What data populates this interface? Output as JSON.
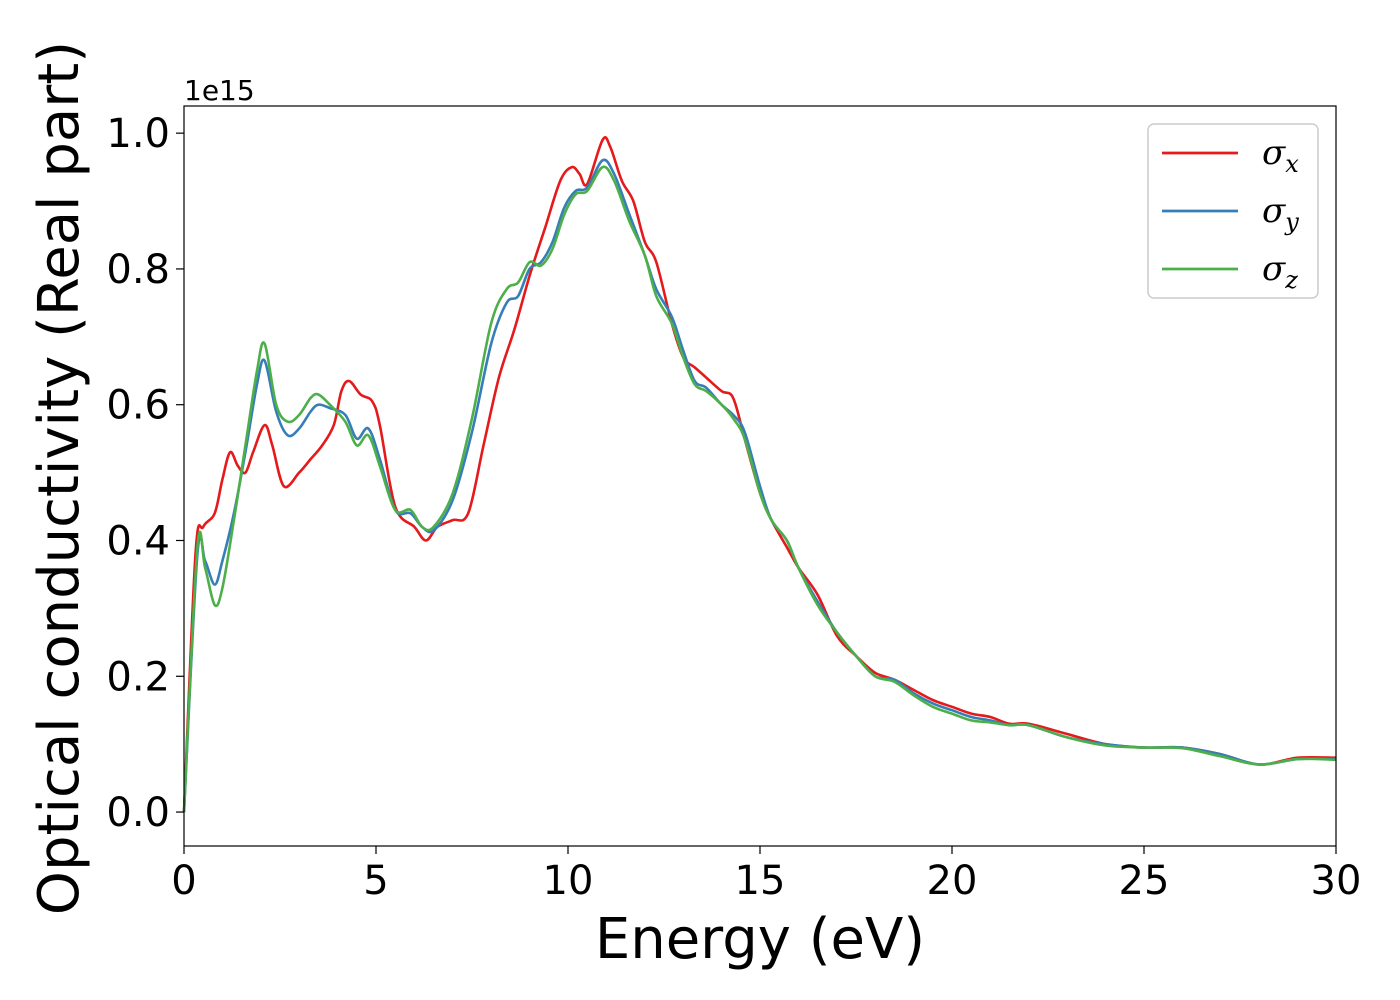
{
  "chart_data": {
    "type": "line",
    "xlabel": "Energy (eV)",
    "ylabel": "Optical conductivity (Real part)",
    "y_offset_label": "1e15",
    "xlim": [
      0,
      30
    ],
    "ylim": [
      -0.05,
      1.04
    ],
    "x_ticks": [
      0,
      5,
      10,
      15,
      20,
      25,
      30
    ],
    "x_tick_labels": [
      "0",
      "5",
      "10",
      "15",
      "20",
      "25",
      "30"
    ],
    "y_ticks": [
      0.0,
      0.2,
      0.4,
      0.6,
      0.8,
      1.0
    ],
    "y_tick_labels": [
      "0.0",
      "0.2",
      "0.4",
      "0.6",
      "0.8",
      "1.0"
    ],
    "grid": false,
    "legend_position": "top-right",
    "series": [
      {
        "name": "σx",
        "symbol": "σ",
        "subscript": "x",
        "color": "#e41a1c",
        "x": [
          0,
          0.3,
          0.5,
          0.8,
          1.0,
          1.2,
          1.4,
          1.6,
          1.8,
          2.1,
          2.3,
          2.6,
          3.0,
          3.3,
          3.6,
          3.9,
          4.1,
          4.3,
          4.6,
          4.9,
          5.1,
          5.5,
          6.0,
          6.3,
          6.6,
          7.0,
          7.4,
          7.8,
          8.2,
          8.6,
          9.0,
          9.4,
          9.8,
          10.1,
          10.3,
          10.5,
          10.9,
          11.1,
          11.4,
          11.7,
          12.0,
          12.3,
          12.7,
          13.0,
          13.3,
          13.6,
          14.0,
          14.3,
          14.6,
          15.0,
          15.3,
          15.7,
          16.0,
          16.5,
          17.0,
          17.5,
          18.0,
          18.5,
          19.0,
          19.5,
          20.0,
          20.5,
          21.0,
          21.5,
          22.0,
          23.0,
          24.0,
          25.0,
          26.0,
          27.0,
          28.0,
          29.0,
          30.0
        ],
        "y": [
          0.0,
          0.38,
          0.42,
          0.44,
          0.49,
          0.53,
          0.51,
          0.5,
          0.53,
          0.57,
          0.54,
          0.48,
          0.5,
          0.52,
          0.54,
          0.57,
          0.62,
          0.635,
          0.615,
          0.605,
          0.57,
          0.45,
          0.42,
          0.4,
          0.42,
          0.43,
          0.44,
          0.54,
          0.64,
          0.71,
          0.79,
          0.86,
          0.93,
          0.95,
          0.94,
          0.925,
          0.99,
          0.98,
          0.93,
          0.9,
          0.84,
          0.81,
          0.72,
          0.67,
          0.655,
          0.64,
          0.62,
          0.61,
          0.55,
          0.47,
          0.43,
          0.39,
          0.36,
          0.32,
          0.26,
          0.23,
          0.205,
          0.195,
          0.18,
          0.165,
          0.155,
          0.145,
          0.14,
          0.13,
          0.13,
          0.115,
          0.1,
          0.095,
          0.095,
          0.085,
          0.07,
          0.08,
          0.08
        ]
      },
      {
        "name": "σy",
        "symbol": "σ",
        "subscript": "y",
        "color": "#377eb8",
        "x": [
          0,
          0.35,
          0.55,
          0.8,
          1.0,
          1.3,
          1.6,
          1.9,
          2.1,
          2.4,
          2.7,
          3.0,
          3.3,
          3.5,
          3.8,
          4.2,
          4.5,
          4.8,
          5.1,
          5.5,
          5.9,
          6.2,
          6.5,
          7.0,
          7.5,
          8.0,
          8.4,
          8.7,
          9.0,
          9.3,
          9.6,
          9.9,
          10.2,
          10.5,
          10.9,
          11.2,
          11.6,
          12.0,
          12.3,
          12.7,
          13.0,
          13.3,
          13.6,
          14.0,
          14.3,
          14.6,
          15.0,
          15.3,
          15.7,
          16.0,
          16.5,
          17.0,
          17.5,
          18.0,
          18.5,
          19.0,
          19.5,
          20.0,
          20.5,
          21.0,
          21.5,
          22.0,
          23.0,
          24.0,
          25.0,
          26.0,
          27.0,
          28.0,
          29.0,
          30.0
        ],
        "y": [
          0.0,
          0.38,
          0.37,
          0.335,
          0.37,
          0.44,
          0.53,
          0.63,
          0.665,
          0.59,
          0.555,
          0.565,
          0.59,
          0.6,
          0.595,
          0.585,
          0.55,
          0.565,
          0.52,
          0.445,
          0.44,
          0.42,
          0.415,
          0.46,
          0.56,
          0.69,
          0.75,
          0.76,
          0.8,
          0.81,
          0.84,
          0.89,
          0.915,
          0.92,
          0.96,
          0.94,
          0.88,
          0.82,
          0.77,
          0.73,
          0.68,
          0.635,
          0.625,
          0.6,
          0.585,
          0.56,
          0.48,
          0.43,
          0.4,
          0.36,
          0.31,
          0.265,
          0.23,
          0.2,
          0.195,
          0.175,
          0.16,
          0.15,
          0.14,
          0.135,
          0.128,
          0.128,
          0.11,
          0.1,
          0.095,
          0.095,
          0.085,
          0.07,
          0.078,
          0.078
        ]
      },
      {
        "name": "σz",
        "symbol": "σ",
        "subscript": "z",
        "color": "#4daf4a",
        "x": [
          0,
          0.35,
          0.55,
          0.8,
          1.0,
          1.3,
          1.6,
          1.9,
          2.1,
          2.4,
          2.7,
          3.0,
          3.3,
          3.5,
          3.8,
          4.2,
          4.5,
          4.8,
          5.1,
          5.5,
          5.9,
          6.2,
          6.5,
          7.0,
          7.5,
          8.0,
          8.4,
          8.7,
          9.0,
          9.3,
          9.6,
          9.9,
          10.2,
          10.5,
          10.9,
          11.2,
          11.6,
          12.0,
          12.3,
          12.7,
          13.0,
          13.3,
          13.6,
          14.0,
          14.3,
          14.6,
          15.0,
          15.3,
          15.7,
          16.0,
          16.5,
          17.0,
          17.5,
          18.0,
          18.5,
          19.0,
          19.5,
          20.0,
          20.5,
          21.0,
          21.5,
          22.0,
          23.0,
          24.0,
          25.0,
          26.0,
          27.0,
          28.0,
          29.0,
          30.0
        ],
        "y": [
          0.0,
          0.39,
          0.36,
          0.305,
          0.33,
          0.43,
          0.54,
          0.65,
          0.69,
          0.6,
          0.575,
          0.585,
          0.61,
          0.615,
          0.6,
          0.575,
          0.54,
          0.555,
          0.51,
          0.445,
          0.445,
          0.42,
          0.42,
          0.47,
          0.58,
          0.72,
          0.77,
          0.78,
          0.81,
          0.805,
          0.83,
          0.88,
          0.91,
          0.915,
          0.95,
          0.93,
          0.87,
          0.82,
          0.76,
          0.72,
          0.67,
          0.63,
          0.62,
          0.6,
          0.58,
          0.55,
          0.47,
          0.43,
          0.4,
          0.36,
          0.305,
          0.265,
          0.23,
          0.2,
          0.192,
          0.172,
          0.155,
          0.145,
          0.135,
          0.132,
          0.128,
          0.128,
          0.11,
          0.098,
          0.095,
          0.094,
          0.082,
          0.07,
          0.078,
          0.077
        ]
      }
    ]
  }
}
